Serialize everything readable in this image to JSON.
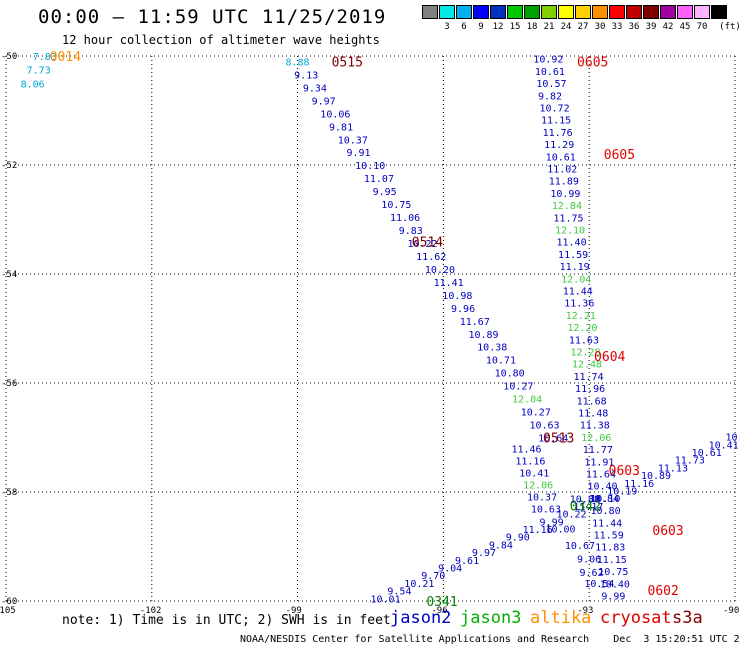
{
  "header": {
    "title": "00:00 – 11:59 UTC 11/25/2019",
    "subtitle": "12 hour collection of altimeter wave heights"
  },
  "color_scale": {
    "unit": "(ft)",
    "swatches": [
      {
        "color": "#808080",
        "label": ""
      },
      {
        "color": "#00e8e8",
        "label": "3"
      },
      {
        "color": "#00b0f0",
        "label": "6"
      },
      {
        "color": "#0000ff",
        "label": "9"
      },
      {
        "color": "#0030c0",
        "label": "12"
      },
      {
        "color": "#00c800",
        "label": "15"
      },
      {
        "color": "#00a000",
        "label": "18"
      },
      {
        "color": "#80d000",
        "label": "21"
      },
      {
        "color": "#ffff00",
        "label": "24"
      },
      {
        "color": "#ffd000",
        "label": "27"
      },
      {
        "color": "#ff9000",
        "label": "30"
      },
      {
        "color": "#ff0000",
        "label": "33"
      },
      {
        "color": "#c00000",
        "label": "36"
      },
      {
        "color": "#800000",
        "label": "39"
      },
      {
        "color": "#a000a0",
        "label": "42"
      },
      {
        "color": "#ff60ff",
        "label": "45"
      },
      {
        "color": "#ffb0ff",
        "label": "70"
      },
      {
        "color": "#000000",
        "label": ""
      }
    ]
  },
  "axes": {
    "lon_labels": [
      "-105",
      "-102",
      "-99",
      "-96",
      "-93",
      "-90"
    ],
    "lat_labels": [
      "-50",
      "-52",
      "-54",
      "-56",
      "-58",
      "-60"
    ]
  },
  "legend": {
    "note": "note: 1) Time is in UTC; 2) SWH is in feet",
    "satellites": [
      {
        "name": "jason2",
        "color": "#0000c0"
      },
      {
        "name": "jason3",
        "color": "#00b000"
      },
      {
        "name": "altika",
        "color": "#ff9000"
      },
      {
        "name": "cryosat",
        "color": "#e00000"
      },
      {
        "name": "s3a",
        "color": "#800000"
      }
    ]
  },
  "footer": {
    "credit": "NOAA/NESDIS Center for Satellite Applications and Research    Dec  3 15:20:51 UTC 2019"
  },
  "colors": {
    "jason2": "#0000c0",
    "jason3_light": "#40c840",
    "jason3_dark": "#008000",
    "altika": "#ff9000",
    "cryosat": "#e00000",
    "s3a": "#800000",
    "cyan": "#00a8d8"
  },
  "tracks": [
    {
      "id": "s3a-0515",
      "time_label": {
        "text": "0515",
        "color": "#800000",
        "lon": -98.3,
        "lat": -50.1
      },
      "start": {
        "lon": -99.25,
        "lat": -50.1
      },
      "end": {
        "lon": -94.05,
        "lat": -57.0
      },
      "points": [
        {
          "v": "8.88",
          "c": "#00a8d8"
        },
        {
          "v": "9.13",
          "c": "#0000c0"
        },
        {
          "v": "9.34",
          "c": "#0000c0"
        },
        {
          "v": "9.97",
          "c": "#0000c0"
        },
        {
          "v": "10.06",
          "c": "#0000c0"
        },
        {
          "v": "9.81",
          "c": "#0000c0"
        },
        {
          "v": "10.37",
          "c": "#0000c0"
        },
        {
          "v": "9.91",
          "c": "#0000c0"
        },
        {
          "v": "10.10",
          "c": "#0000c0"
        },
        {
          "v": "11.07",
          "c": "#0000c0"
        },
        {
          "v": "9.95",
          "c": "#0000c0"
        },
        {
          "v": "10.75",
          "c": "#0000c0"
        },
        {
          "v": "11.06",
          "c": "#0000c0"
        },
        {
          "v": "9.83",
          "c": "#0000c0"
        },
        {
          "v": "10.22",
          "c": "#0000c0"
        },
        {
          "v": "11.62",
          "c": "#0000c0"
        },
        {
          "v": "10.20",
          "c": "#0000c0"
        },
        {
          "v": "11.41",
          "c": "#0000c0"
        },
        {
          "v": "10.98",
          "c": "#0000c0"
        },
        {
          "v": "9.96",
          "c": "#0000c0"
        },
        {
          "v": "11.67",
          "c": "#0000c0"
        },
        {
          "v": "10.89",
          "c": "#0000c0"
        },
        {
          "v": "10.38",
          "c": "#0000c0"
        },
        {
          "v": "10.71",
          "c": "#0000c0"
        },
        {
          "v": "10.80",
          "c": "#0000c0"
        },
        {
          "v": "10.27",
          "c": "#0000c0"
        },
        {
          "v": "12.04",
          "c": "#40c840"
        },
        {
          "v": "10.27",
          "c": "#0000c0"
        },
        {
          "v": "10.63",
          "c": "#0000c0"
        },
        {
          "v": "10.64",
          "c": "#0000c0"
        }
      ]
    },
    {
      "id": "s3a-0514",
      "time_label": {
        "text": "0514",
        "color": "#800000",
        "lon": -96.65,
        "lat": -53.4
      },
      "start": {
        "lon": -94.6,
        "lat": -57.2
      },
      "end": {
        "lon": -94.2,
        "lat": -58.3
      },
      "points": [
        {
          "v": "11.46",
          "c": "#0000c0"
        },
        {
          "v": "11.16",
          "c": "#0000c0"
        },
        {
          "v": "10.41",
          "c": "#0000c0"
        },
        {
          "v": "12.06",
          "c": "#40c840"
        },
        {
          "v": "10.37",
          "c": "#0000c0"
        },
        {
          "v": "10.63",
          "c": "#0000c0"
        }
      ]
    },
    {
      "id": "cryosat-0605",
      "time_label": {
        "text": "0605",
        "color": "#e00000",
        "lon": -93.25,
        "lat": -50.1
      },
      "start": {
        "lon": -94.15,
        "lat": -50.05
      },
      "end": {
        "lon": -92.75,
        "lat": -59.9
      },
      "points": [
        {
          "v": "10.92",
          "c": "#0000c0"
        },
        {
          "v": "10.61",
          "c": "#0000c0"
        },
        {
          "v": "10.57",
          "c": "#0000c0"
        },
        {
          "v": "9.82",
          "c": "#0000c0"
        },
        {
          "v": "10.72",
          "c": "#0000c0"
        },
        {
          "v": "11.15",
          "c": "#0000c0"
        },
        {
          "v": "11.76",
          "c": "#0000c0"
        },
        {
          "v": "11.29",
          "c": "#0000c0"
        },
        {
          "v": "10.61",
          "c": "#0000c0"
        },
        {
          "v": "11.02",
          "c": "#0000c0"
        },
        {
          "v": "11.89",
          "c": "#0000c0"
        },
        {
          "v": "10.99",
          "c": "#0000c0"
        },
        {
          "v": "12.84",
          "c": "#40c840"
        },
        {
          "v": "11.75",
          "c": "#0000c0"
        },
        {
          "v": "12.10",
          "c": "#40c840"
        },
        {
          "v": "11.40",
          "c": "#0000c0"
        },
        {
          "v": "11.59",
          "c": "#0000c0"
        },
        {
          "v": "11.19",
          "c": "#0000c0"
        },
        {
          "v": "12.04",
          "c": "#40c840"
        },
        {
          "v": "11.44",
          "c": "#0000c0"
        },
        {
          "v": "11.36",
          "c": "#0000c0"
        },
        {
          "v": "12.21",
          "c": "#40c840"
        },
        {
          "v": "12.20",
          "c": "#40c840"
        },
        {
          "v": "11.63",
          "c": "#0000c0"
        },
        {
          "v": "12.28",
          "c": "#40c840"
        },
        {
          "v": "12.48",
          "c": "#40c840"
        },
        {
          "v": "11.74",
          "c": "#0000c0"
        },
        {
          "v": "11.96",
          "c": "#0000c0"
        },
        {
          "v": "11.68",
          "c": "#0000c0"
        },
        {
          "v": "11.48",
          "c": "#0000c0"
        },
        {
          "v": "11.38",
          "c": "#0000c0"
        },
        {
          "v": "12.06",
          "c": "#40c840"
        },
        {
          "v": "11.77",
          "c": "#0000c0"
        },
        {
          "v": "11.91",
          "c": "#0000c0"
        },
        {
          "v": "11.64",
          "c": "#0000c0"
        },
        {
          "v": "10.40",
          "c": "#0000c0"
        },
        {
          "v": "10.84",
          "c": "#0000c0"
        },
        {
          "v": "10.80",
          "c": "#0000c0"
        },
        {
          "v": "11.44",
          "c": "#0000c0"
        },
        {
          "v": "11.59",
          "c": "#0000c0"
        },
        {
          "v": "11.83",
          "c": "#0000c0"
        },
        {
          "v": "11.15",
          "c": "#0000c0"
        },
        {
          "v": "10.75",
          "c": "#0000c0"
        },
        {
          "v": "10.40",
          "c": "#0000c0"
        },
        {
          "v": "9.99",
          "c": "#0000c0"
        }
      ]
    },
    {
      "id": "jason3-0341",
      "time_label": {
        "text": "0341",
        "color": "#008000",
        "lon": -96.35,
        "lat": -60.0
      },
      "start": {
        "lon": -97.5,
        "lat": -59.95
      },
      "end": {
        "lon": -89.5,
        "lat": -56.7
      },
      "points": [
        {
          "v": "10.01",
          "c": "#0000c0"
        },
        {
          "v": "9.54",
          "c": "#0000c0"
        },
        {
          "v": "10.21",
          "c": "#0000c0"
        },
        {
          "v": "9.70",
          "c": "#0000c0"
        },
        {
          "v": "9.04",
          "c": "#0000c0"
        },
        {
          "v": "9.61",
          "c": "#0000c0"
        },
        {
          "v": "9.97",
          "c": "#0000c0"
        },
        {
          "v": "9.84",
          "c": "#0000c0"
        },
        {
          "v": "9.90",
          "c": "#0000c0"
        },
        {
          "v": "11.16",
          "c": "#0000c0"
        },
        {
          "v": "9.99",
          "c": "#0000c0"
        },
        {
          "v": "10.22",
          "c": "#0000c0"
        },
        {
          "v": "11.17",
          "c": "#0000c0"
        },
        {
          "v": "10.10",
          "c": "#0000c0"
        },
        {
          "v": "10.19",
          "c": "#0000c0"
        },
        {
          "v": "11.16",
          "c": "#0000c0"
        },
        {
          "v": "10.89",
          "c": "#0000c0"
        },
        {
          "v": "11.13",
          "c": "#0000c0"
        },
        {
          "v": "11.73",
          "c": "#0000c0"
        },
        {
          "v": "10.61",
          "c": "#0000c0"
        },
        {
          "v": "10.41",
          "c": "#0000c0"
        },
        {
          "v": "10.95",
          "c": "#0000c0"
        },
        {
          "v": "11.10",
          "c": "#0000c0"
        },
        {
          "v": "10.6",
          "c": "#0000c0"
        }
      ]
    },
    {
      "id": "altika-0014",
      "time_label": {
        "text": "0014",
        "color": "#ff9000",
        "lon": -104.1,
        "lat": -50.0
      },
      "start": {
        "lon": -104.45,
        "lat": -50.0
      },
      "end": {
        "lon": -104.7,
        "lat": -50.5
      },
      "points": [
        {
          "v": "7.83",
          "c": "#00a8d8"
        },
        {
          "v": "7.73",
          "c": "#00a8d8"
        },
        {
          "v": "8.06",
          "c": "#00a8d8"
        }
      ]
    }
  ],
  "extra_labels": [
    {
      "text": "0513",
      "color": "#800000",
      "lon": -93.95,
      "lat": -57.0
    },
    {
      "text": "0605",
      "color": "#e00000",
      "lon": -92.7,
      "lat": -51.8
    },
    {
      "text": "0604",
      "color": "#e00000",
      "lon": -92.9,
      "lat": -55.5
    },
    {
      "text": "0603",
      "color": "#e00000",
      "lon": -92.6,
      "lat": -57.6
    },
    {
      "text": "0603",
      "color": "#e00000",
      "lon": -91.7,
      "lat": -58.7
    },
    {
      "text": "0602",
      "color": "#e00000",
      "lon": -91.8,
      "lat": -59.8
    },
    {
      "text": "0342",
      "color": "#008000",
      "lon": -93.4,
      "lat": -58.25
    },
    {
      "text": "10.00",
      "color": "#0000c0",
      "lon": -93.9,
      "lat": -58.65
    },
    {
      "text": "10.67",
      "color": "#0000c0",
      "lon": -93.5,
      "lat": -58.95
    },
    {
      "text": "9.06",
      "color": "#0000c0",
      "lon": -93.25,
      "lat": -59.2
    },
    {
      "text": "9.62",
      "color": "#0000c0",
      "lon": -93.2,
      "lat": -59.45
    },
    {
      "text": "10.54",
      "color": "#0000c0",
      "lon": -93.1,
      "lat": -59.65
    },
    {
      "text": "10.88",
      "color": "#0000c0",
      "lon": -93.4,
      "lat": -58.1
    }
  ]
}
